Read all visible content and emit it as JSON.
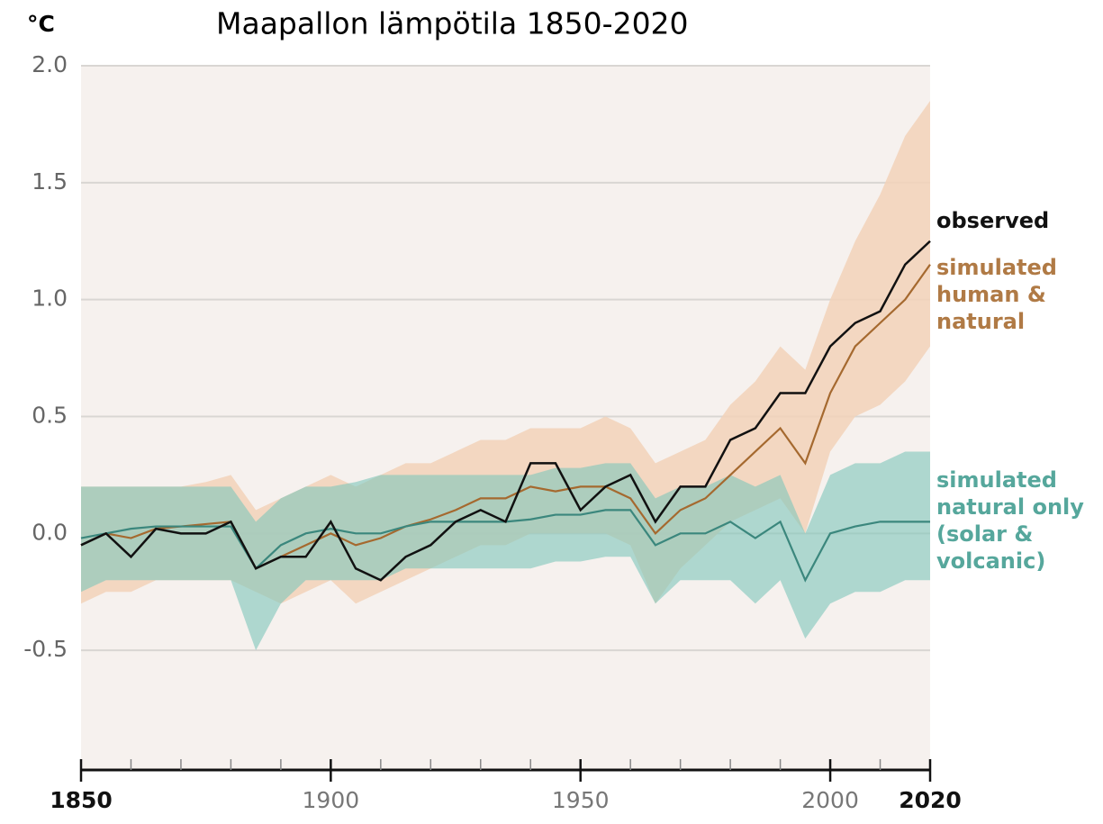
{
  "chart_data": {
    "type": "line",
    "title": "Maapallon lämpötila 1850-2020",
    "y_label": "°C",
    "x": [
      1850,
      1855,
      1860,
      1865,
      1870,
      1875,
      1880,
      1885,
      1890,
      1895,
      1900,
      1905,
      1910,
      1915,
      1920,
      1925,
      1930,
      1935,
      1940,
      1945,
      1950,
      1955,
      1960,
      1965,
      1970,
      1975,
      1980,
      1985,
      1990,
      1995,
      2000,
      2005,
      2010,
      2015,
      2020
    ],
    "series": [
      {
        "name": "simulated human & natural",
        "color": "#a5692f",
        "band_color": "#f2d2b8",
        "values": [
          -0.05,
          0.0,
          -0.02,
          0.02,
          0.03,
          0.04,
          0.05,
          -0.15,
          -0.1,
          -0.05,
          0.0,
          -0.05,
          -0.02,
          0.03,
          0.06,
          0.1,
          0.15,
          0.15,
          0.2,
          0.18,
          0.2,
          0.2,
          0.15,
          0.0,
          0.1,
          0.15,
          0.25,
          0.35,
          0.45,
          0.3,
          0.6,
          0.8,
          0.9,
          1.0,
          1.15
        ],
        "lower": [
          -0.3,
          -0.25,
          -0.25,
          -0.2,
          -0.2,
          -0.2,
          -0.2,
          -0.25,
          -0.3,
          -0.25,
          -0.2,
          -0.3,
          -0.25,
          -0.2,
          -0.15,
          -0.1,
          -0.05,
          -0.05,
          0.0,
          0.0,
          0.0,
          0.0,
          -0.05,
          -0.3,
          -0.15,
          -0.05,
          0.05,
          0.1,
          0.15,
          0.0,
          0.35,
          0.5,
          0.55,
          0.65,
          0.8
        ],
        "upper": [
          0.2,
          0.2,
          0.2,
          0.2,
          0.2,
          0.22,
          0.25,
          0.1,
          0.15,
          0.2,
          0.25,
          0.2,
          0.25,
          0.3,
          0.3,
          0.35,
          0.4,
          0.4,
          0.45,
          0.45,
          0.45,
          0.5,
          0.45,
          0.3,
          0.35,
          0.4,
          0.55,
          0.65,
          0.8,
          0.7,
          1.0,
          1.25,
          1.45,
          1.7,
          1.85
        ]
      },
      {
        "name": "simulated natural only (solar & volcanic)",
        "color": "#3b877d",
        "band_color": "#7fc6bb",
        "values": [
          -0.02,
          0.0,
          0.02,
          0.03,
          0.03,
          0.03,
          0.03,
          -0.15,
          -0.05,
          0.0,
          0.02,
          0.0,
          0.0,
          0.03,
          0.05,
          0.05,
          0.05,
          0.05,
          0.06,
          0.08,
          0.08,
          0.1,
          0.1,
          -0.05,
          0.0,
          0.0,
          0.05,
          -0.02,
          0.05,
          -0.2,
          0.0,
          0.03,
          0.05,
          0.05,
          0.05
        ],
        "lower": [
          -0.25,
          -0.2,
          -0.2,
          -0.2,
          -0.2,
          -0.2,
          -0.2,
          -0.5,
          -0.3,
          -0.2,
          -0.2,
          -0.2,
          -0.2,
          -0.15,
          -0.15,
          -0.15,
          -0.15,
          -0.15,
          -0.15,
          -0.12,
          -0.12,
          -0.1,
          -0.1,
          -0.3,
          -0.2,
          -0.2,
          -0.2,
          -0.3,
          -0.2,
          -0.45,
          -0.3,
          -0.25,
          -0.25,
          -0.2,
          -0.2
        ],
        "upper": [
          0.2,
          0.2,
          0.2,
          0.2,
          0.2,
          0.2,
          0.2,
          0.05,
          0.15,
          0.2,
          0.2,
          0.22,
          0.25,
          0.25,
          0.25,
          0.25,
          0.25,
          0.25,
          0.25,
          0.28,
          0.28,
          0.3,
          0.3,
          0.15,
          0.2,
          0.2,
          0.25,
          0.2,
          0.25,
          0.0,
          0.25,
          0.3,
          0.3,
          0.35,
          0.35
        ]
      },
      {
        "name": "observed",
        "color": "#111111",
        "values": [
          -0.05,
          0.0,
          -0.1,
          0.02,
          0.0,
          0.0,
          0.05,
          -0.15,
          -0.1,
          -0.1,
          0.05,
          -0.15,
          -0.2,
          -0.1,
          -0.05,
          0.05,
          0.1,
          0.05,
          0.3,
          0.3,
          0.1,
          0.2,
          0.25,
          0.05,
          0.2,
          0.2,
          0.4,
          0.45,
          0.6,
          0.6,
          0.8,
          0.9,
          0.95,
          1.15,
          1.25
        ]
      }
    ],
    "xlim": [
      1850,
      2020
    ],
    "xticks": [
      1850,
      1900,
      1950,
      2000,
      2020
    ],
    "xminor_ticks": [
      1860,
      1870,
      1880,
      1890,
      1910,
      1920,
      1930,
      1940,
      1960,
      1970,
      1980,
      1990,
      2010
    ],
    "ylim": [
      -1.0,
      2.0
    ],
    "yticks": [
      {
        "value": 2,
        "label": "2.0"
      },
      {
        "value": 1.5,
        "label": "1.5"
      },
      {
        "value": 1,
        "label": "1.0"
      },
      {
        "value": 0.5,
        "label": "0.5"
      },
      {
        "value": 0,
        "label": "0.0"
      },
      -0.5
    ],
    "grid": true,
    "background": "#f6f1ee"
  }
}
